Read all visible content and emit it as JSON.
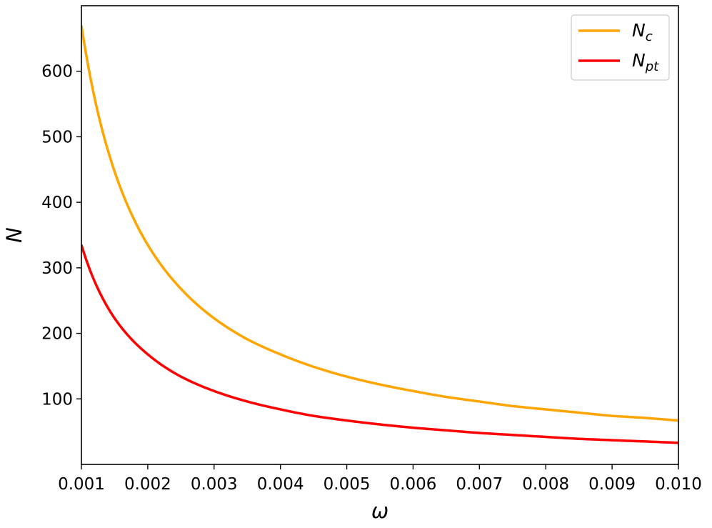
{
  "chart_data": {
    "type": "line",
    "title": "",
    "xlabel": "ω",
    "ylabel": "N",
    "xlim": [
      0.001,
      0.01
    ],
    "ylim": [
      0,
      700
    ],
    "xticks": [
      "0.001",
      "0.002",
      "0.003",
      "0.004",
      "0.005",
      "0.006",
      "0.007",
      "0.008",
      "0.009",
      "0.010"
    ],
    "yticks": [
      "100",
      "200",
      "300",
      "400",
      "500",
      "600"
    ],
    "grid": false,
    "legend_position": "top-right",
    "x": [
      0.001,
      0.0015,
      0.002,
      0.0025,
      0.003,
      0.0035,
      0.004,
      0.0045,
      0.005,
      0.0055,
      0.006,
      0.0065,
      0.007,
      0.0075,
      0.008,
      0.0085,
      0.009,
      0.0095,
      0.01
    ],
    "series": [
      {
        "name_base": "N",
        "name_sub": "c",
        "color": "#FFA500",
        "values": [
          670,
          447,
          335,
          268,
          223,
          191,
          168,
          149,
          134,
          122,
          112,
          103,
          96,
          89,
          84,
          79,
          74,
          71,
          67
        ]
      },
      {
        "name_base": "N",
        "name_sub": "pt",
        "color": "#FF0000",
        "values": [
          335,
          223,
          168,
          134,
          112,
          96,
          84,
          74,
          67,
          61,
          56,
          52,
          48,
          45,
          42,
          39,
          37,
          35,
          33
        ]
      }
    ]
  }
}
